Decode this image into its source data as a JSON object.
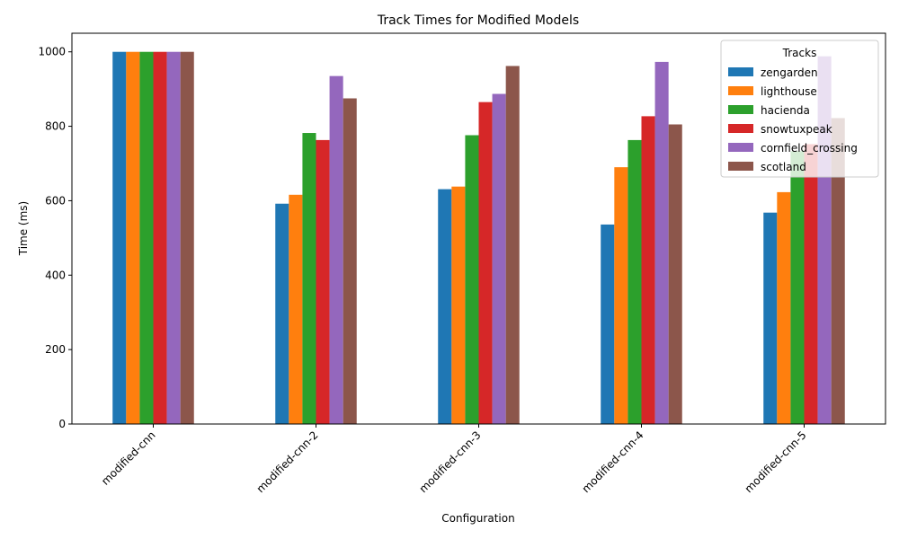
{
  "chart_data": {
    "type": "bar",
    "title": "Track Times for Modified Models",
    "xlabel": "Configuration",
    "ylabel": "Time (ms)",
    "ylim": [
      0,
      1050
    ],
    "yticks": [
      0,
      200,
      400,
      600,
      800,
      1000
    ],
    "categories": [
      "modified-cnn",
      "modified-cnn-2",
      "modified-cnn-3",
      "modified-cnn-4",
      "modified-cnn-5"
    ],
    "legend": {
      "title": "Tracks",
      "placement": "top-right"
    },
    "grid": false,
    "series": [
      {
        "name": "zengarden",
        "color": "#1f77b4",
        "values": [
          1000,
          592,
          631,
          536,
          568
        ]
      },
      {
        "name": "lighthouse",
        "color": "#ff7f0e",
        "values": [
          1000,
          616,
          638,
          690,
          623
        ]
      },
      {
        "name": "hacienda",
        "color": "#2ca02c",
        "values": [
          1000,
          782,
          776,
          763,
          733
        ]
      },
      {
        "name": "snowtuxpeak",
        "color": "#d62728",
        "values": [
          1000,
          763,
          865,
          827,
          752
        ]
      },
      {
        "name": "cornfield_crossing",
        "color": "#9467bd",
        "values": [
          1000,
          935,
          887,
          973,
          988
        ]
      },
      {
        "name": "scotland",
        "color": "#8c564b",
        "values": [
          1000,
          875,
          962,
          805,
          822
        ]
      }
    ]
  }
}
